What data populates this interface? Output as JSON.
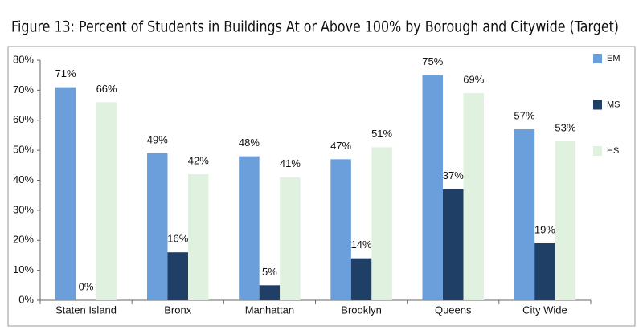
{
  "chart_data": {
    "type": "bar",
    "title": "Figure 13: Percent of Students in Buildings At or Above 100% by Borough and Citywide (Target)",
    "categories": [
      "Staten Island",
      "Bronx",
      "Manhattan",
      "Brooklyn",
      "Queens",
      "City Wide"
    ],
    "series": [
      {
        "name": "EM",
        "color": "#6a9fdc",
        "values": [
          71,
          49,
          48,
          47,
          75,
          57
        ],
        "value_labels": [
          "71%",
          "49%",
          "48%",
          "47%",
          "75%",
          "57%"
        ]
      },
      {
        "name": "MS",
        "color": "#1f3f66",
        "values": [
          0,
          16,
          5,
          14,
          37,
          19
        ],
        "value_labels": [
          "0%",
          "16%",
          "5%",
          "14%",
          "37%",
          "19%"
        ]
      },
      {
        "name": "HS",
        "color": "#e0f1e0",
        "values": [
          66,
          42,
          41,
          51,
          69,
          53
        ],
        "value_labels": [
          "66%",
          "42%",
          "41%",
          "51%",
          "69%",
          "53%"
        ]
      }
    ],
    "ylim": [
      0,
      80
    ],
    "yticks": [
      {
        "value": 0,
        "label": "0%"
      },
      {
        "value": 10,
        "label": "10%"
      },
      {
        "value": 20,
        "label": "20%"
      },
      {
        "value": 30,
        "label": "30%"
      },
      {
        "value": 40,
        "label": "40%"
      },
      {
        "value": 50,
        "label": "50%"
      },
      {
        "value": 60,
        "label": "60%"
      },
      {
        "value": 70,
        "label": "70%"
      },
      {
        "value": 80,
        "label": "80%"
      }
    ],
    "grid": false,
    "legend": "right"
  }
}
